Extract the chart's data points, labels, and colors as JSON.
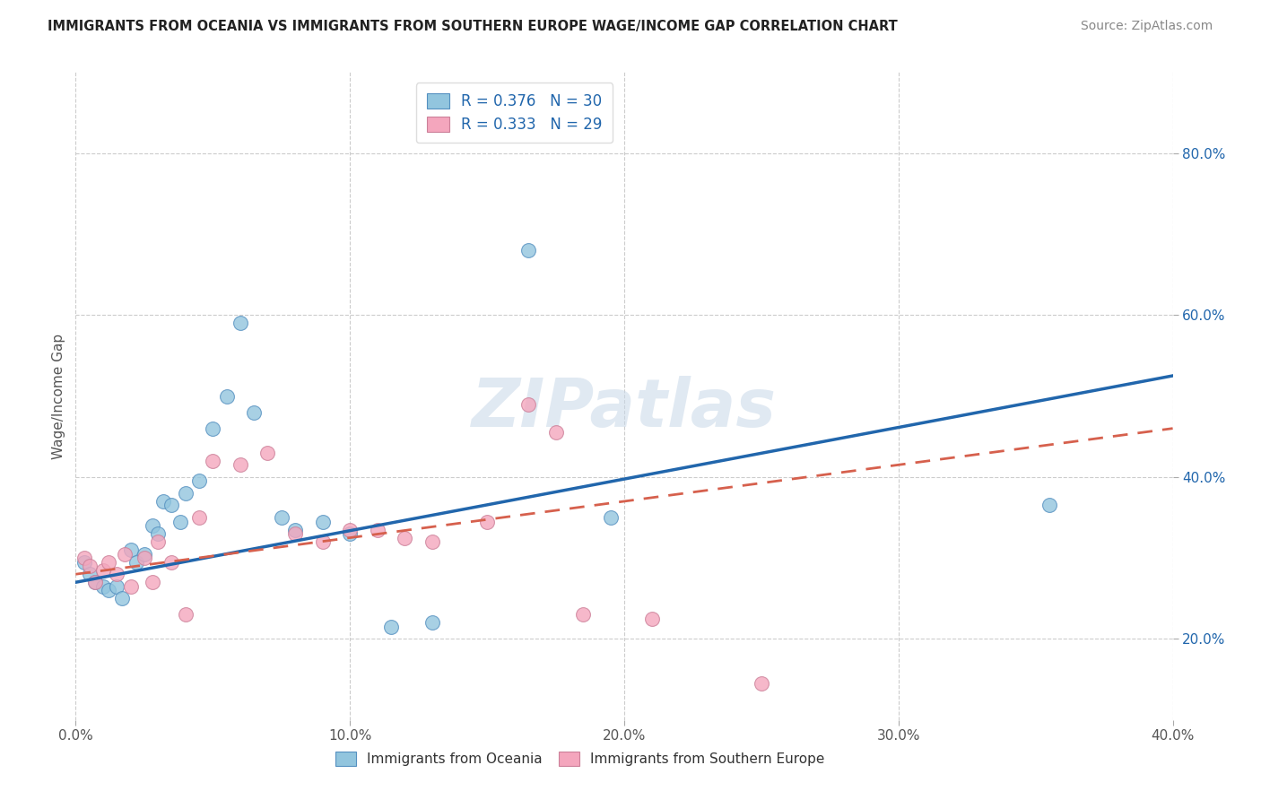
{
  "title": "IMMIGRANTS FROM OCEANIA VS IMMIGRANTS FROM SOUTHERN EUROPE WAGE/INCOME GAP CORRELATION CHART",
  "source": "Source: ZipAtlas.com",
  "ylabel": "Wage/Income Gap",
  "xmin": 0.0,
  "xmax": 0.4,
  "ymin": 0.1,
  "ymax": 0.9,
  "yticks": [
    0.2,
    0.4,
    0.6,
    0.8
  ],
  "xticks": [
    0.0,
    0.1,
    0.2,
    0.3,
    0.4
  ],
  "legend1_r": "0.376",
  "legend1_n": "30",
  "legend2_r": "0.333",
  "legend2_n": "29",
  "color_blue": "#92c5de",
  "color_pink": "#f4a6bd",
  "color_line_blue": "#2166ac",
  "color_line_pink": "#d6604d",
  "watermark": "ZIPatlas",
  "blue_x": [
    0.003,
    0.005,
    0.007,
    0.01,
    0.012,
    0.015,
    0.017,
    0.02,
    0.022,
    0.025,
    0.028,
    0.03,
    0.032,
    0.035,
    0.038,
    0.04,
    0.045,
    0.05,
    0.055,
    0.06,
    0.065,
    0.075,
    0.08,
    0.09,
    0.1,
    0.115,
    0.13,
    0.165,
    0.195,
    0.355
  ],
  "blue_y": [
    0.295,
    0.28,
    0.27,
    0.265,
    0.26,
    0.265,
    0.25,
    0.31,
    0.295,
    0.305,
    0.34,
    0.33,
    0.37,
    0.365,
    0.345,
    0.38,
    0.395,
    0.46,
    0.5,
    0.59,
    0.48,
    0.35,
    0.335,
    0.345,
    0.33,
    0.215,
    0.22,
    0.68,
    0.35,
    0.365
  ],
  "pink_x": [
    0.003,
    0.005,
    0.007,
    0.01,
    0.012,
    0.015,
    0.018,
    0.02,
    0.025,
    0.028,
    0.03,
    0.035,
    0.04,
    0.045,
    0.05,
    0.06,
    0.07,
    0.08,
    0.09,
    0.1,
    0.11,
    0.12,
    0.13,
    0.15,
    0.165,
    0.175,
    0.185,
    0.21,
    0.25
  ],
  "pink_y": [
    0.3,
    0.29,
    0.27,
    0.285,
    0.295,
    0.28,
    0.305,
    0.265,
    0.3,
    0.27,
    0.32,
    0.295,
    0.23,
    0.35,
    0.42,
    0.415,
    0.43,
    0.33,
    0.32,
    0.335,
    0.335,
    0.325,
    0.32,
    0.345,
    0.49,
    0.455,
    0.23,
    0.225,
    0.145
  ]
}
